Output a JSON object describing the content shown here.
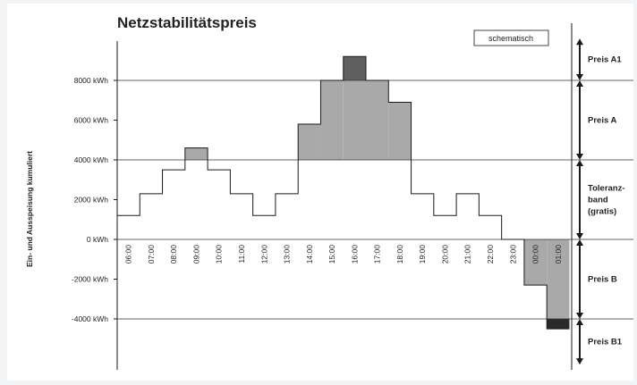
{
  "chart_data": {
    "type": "step-area",
    "title": "Netzstabilitätspreis",
    "badge": "schematisch",
    "ylabel": "Ein- und Ausspeisung kumuliert",
    "ylim": [
      -6400,
      10200
    ],
    "yticks": [
      8000,
      6000,
      4000,
      2000,
      0,
      -2000,
      -4000
    ],
    "ytick_labels": [
      "8000 kWh",
      "6000 kWh",
      "4000 kWh",
      "2000 kWh",
      "0 kWh",
      "-2000 kWh",
      "-4000 kWh"
    ],
    "categories": [
      "06:00",
      "07:00",
      "08:00",
      "09:00",
      "10:00",
      "11:00",
      "12:00",
      "13:00",
      "14:00",
      "15:00",
      "16:00",
      "17:00",
      "18:00",
      "19:00",
      "20:00",
      "21:00",
      "22:00",
      "23:00",
      "00:00",
      "01:00"
    ],
    "values": [
      1200,
      2300,
      3500,
      4600,
      3500,
      2300,
      1200,
      2300,
      5800,
      8000,
      9200,
      8000,
      6900,
      2300,
      1200,
      2300,
      1200,
      0,
      -2300,
      -4500
    ],
    "tolerance_band": [
      0,
      4000
    ],
    "level_lines": [
      8000,
      4000,
      0,
      -4000
    ],
    "price_zones": [
      {
        "label": "Preis A1",
        "from": 8000,
        "to": 10100
      },
      {
        "label": "Preis A",
        "from": 4000,
        "to": 8000
      },
      {
        "label": "Toleranz-\nband\n(gratis)",
        "from": 0,
        "to": 4000
      },
      {
        "label": "Preis B",
        "from": -4000,
        "to": 0
      },
      {
        "label": "Preis B1",
        "from": -6300,
        "to": -4000
      }
    ],
    "colors": {
      "fill_light": "#a9a9a9",
      "fill_dark": "#5f5f5f",
      "fill_black": "#2a2a2a",
      "line": "#1a1a1a",
      "grid": "#333333"
    }
  }
}
